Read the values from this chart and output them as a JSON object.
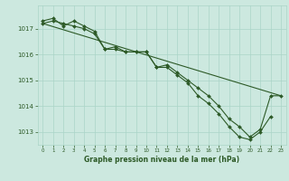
{
  "bg_color": "#cce8df",
  "grid_color": "#aad4c8",
  "line_color": "#2d5a27",
  "marker_color": "#2d5a27",
  "title": "Graphe pression niveau de la mer (hPa)",
  "ylim": [
    1012.5,
    1017.9
  ],
  "xlim": [
    -0.5,
    23.5
  ],
  "yticks": [
    1013,
    1014,
    1015,
    1016,
    1017
  ],
  "xticks": [
    0,
    1,
    2,
    3,
    4,
    5,
    6,
    7,
    8,
    9,
    10,
    11,
    12,
    13,
    14,
    15,
    16,
    17,
    18,
    19,
    20,
    21,
    22,
    23
  ],
  "series1": [
    1017.2,
    1017.3,
    1017.2,
    1017.1,
    1017.0,
    1016.8,
    1016.2,
    1016.2,
    1016.1,
    1016.1,
    1016.1,
    1015.5,
    1015.6,
    1015.3,
    1015.0,
    1014.7,
    1014.4,
    1014.0,
    1013.5,
    1013.2,
    1012.8,
    1013.1,
    1014.4,
    1014.4
  ],
  "series2": [
    1017.3,
    1017.4,
    1017.1,
    1017.3,
    1017.1,
    1016.9,
    1016.2,
    1016.3,
    1016.1,
    1016.1,
    1016.1,
    1015.5,
    1015.5,
    1015.2,
    1014.9,
    1014.4,
    1014.1,
    1013.7,
    1013.2,
    1012.8,
    1012.7,
    1013.0,
    1013.6,
    null
  ],
  "series3_x": [
    0,
    23
  ],
  "series3_y": [
    1017.2,
    1014.4
  ]
}
